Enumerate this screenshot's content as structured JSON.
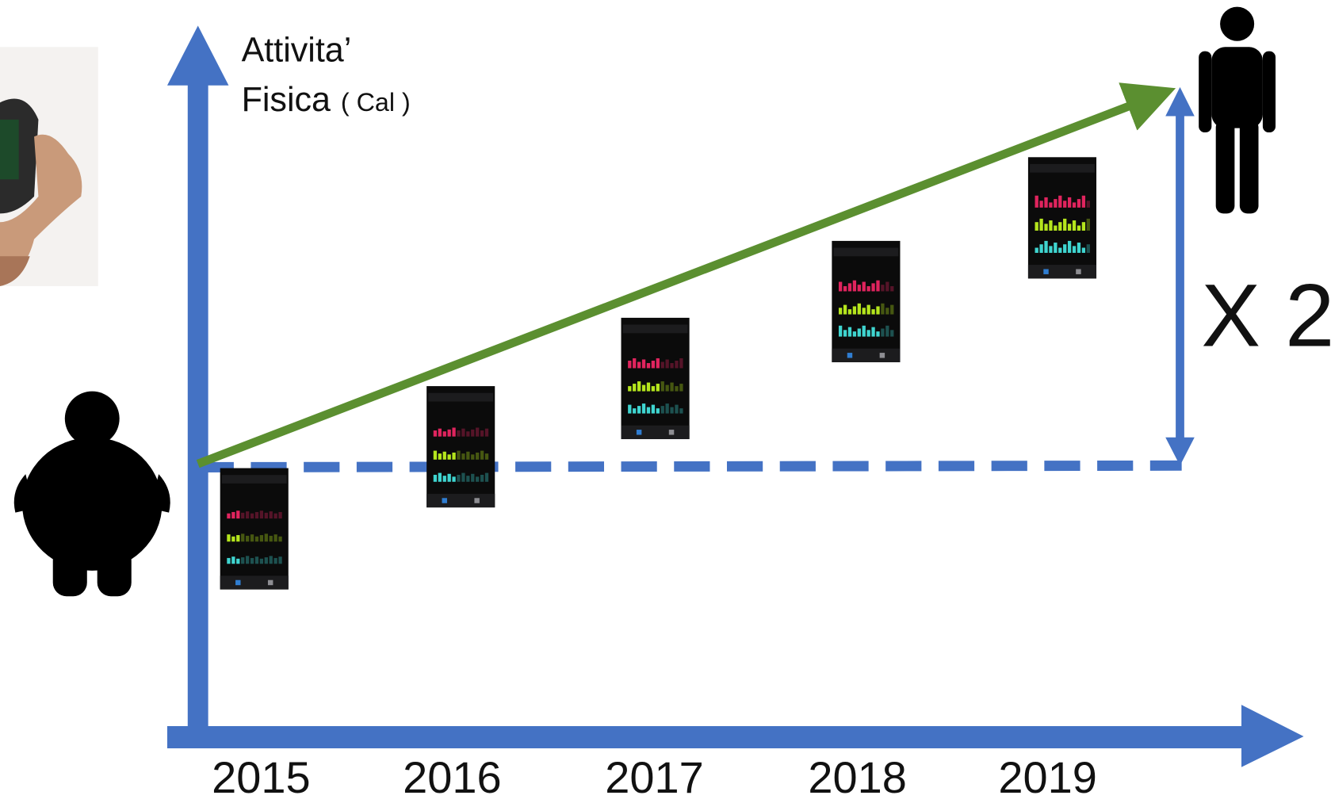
{
  "axis_label": {
    "line1": "Attivita’",
    "line2": "Fisica",
    "unit": "( Cal )"
  },
  "multiplier": "X 2",
  "years": [
    "2015",
    "2016",
    "2017",
    "2018",
    "2019"
  ]
}
